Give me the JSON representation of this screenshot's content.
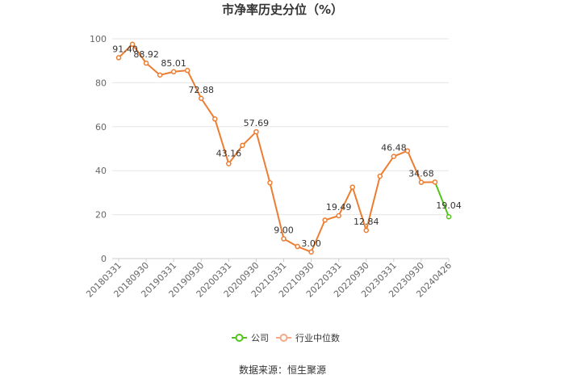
{
  "chart_data": {
    "type": "line",
    "title": "市净率历史分位（%）",
    "ylim": [
      0,
      100
    ],
    "y_ticks": [
      0,
      20,
      40,
      60,
      80,
      100
    ],
    "x_tick_labels": [
      "20180331",
      "20180930",
      "20190331",
      "20190930",
      "20200331",
      "20200930",
      "20210331",
      "20210930",
      "20220331",
      "20220930",
      "20230331",
      "20230930",
      "20240426"
    ],
    "grid": "horizontal",
    "legend_position": "bottom",
    "series": [
      {
        "name": "公司",
        "color": "#52c41a",
        "values": [
          91.4,
          97.5,
          88.92,
          83.5,
          85.01,
          85.6,
          72.88,
          63.5,
          43.16,
          51.5,
          57.69,
          34.5,
          9.0,
          5.5,
          3.0,
          17.5,
          19.49,
          32.5,
          12.84,
          37.5,
          46.48,
          49.0,
          34.68,
          34.8,
          19.04
        ]
      },
      {
        "name": "行业中位数",
        "color": "#f4a986",
        "values": []
      }
    ],
    "highlight_segment_color": "#ed7d31",
    "data_labels": [
      {
        "index": 0,
        "text": "91.40"
      },
      {
        "index": 2,
        "text": "88.92"
      },
      {
        "index": 4,
        "text": "85.01"
      },
      {
        "index": 6,
        "text": "72.88"
      },
      {
        "index": 8,
        "text": "43.16"
      },
      {
        "index": 10,
        "text": "57.69"
      },
      {
        "index": 12,
        "text": "9.00"
      },
      {
        "index": 14,
        "text": "3.00"
      },
      {
        "index": 16,
        "text": "19.49"
      },
      {
        "index": 18,
        "text": "12.84"
      },
      {
        "index": 20,
        "text": "46.48"
      },
      {
        "index": 22,
        "text": "34.68"
      },
      {
        "index": 24,
        "text": "19.04"
      }
    ]
  },
  "source": "数据来源：恒生聚源"
}
